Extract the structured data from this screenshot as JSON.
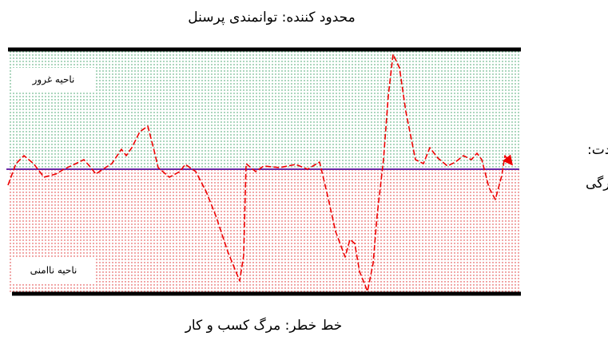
{
  "header": {
    "title": "محدود کننده: توانمندی پرسنل"
  },
  "zones": {
    "upper": "ناحیه غرور",
    "lower": "ناحیه ناامنی"
  },
  "boundary": {
    "line1": "مرز عادت:",
    "line2": "روزمرگی"
  },
  "danger_line": "خط خطر: مرگ کسب و کار"
}
